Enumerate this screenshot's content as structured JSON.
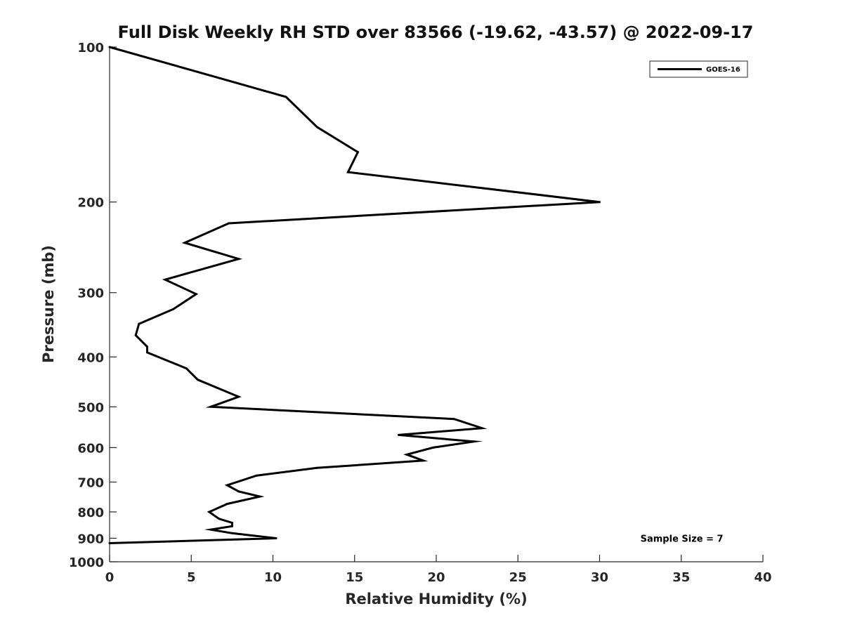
{
  "chart_data": {
    "type": "line",
    "title": "Full Disk Weekly RH STD over 83566 (-19.62, -43.57) @ 2022-09-17",
    "xlabel": "Relative Humidity (%)",
    "ylabel": "Pressure (mb)",
    "xlim": [
      0,
      40
    ],
    "ylim": [
      100,
      1000
    ],
    "y_scale": "log",
    "y_inverted": true,
    "grid": false,
    "legend_position": "top-right",
    "x_ticks": [
      0,
      5,
      10,
      15,
      20,
      25,
      30,
      35,
      40
    ],
    "x_tick_labels": [
      "0",
      "5",
      "10",
      "15",
      "20",
      "25",
      "30",
      "35",
      "40"
    ],
    "y_ticks": [
      100,
      200,
      300,
      400,
      500,
      600,
      700,
      800,
      900,
      1000
    ],
    "y_tick_labels": [
      "100",
      "200",
      "300",
      "400",
      "500",
      "600",
      "700",
      "800",
      "900",
      "1000"
    ],
    "series": [
      {
        "name": "GOES-16",
        "color": "#000000",
        "x": [
          0,
          10.8,
          12.7,
          15.2,
          14.6,
          30.0,
          7.3,
          4.6,
          7.9,
          3.4,
          5.3,
          3.9,
          1.8,
          1.6,
          2.3,
          2.3,
          4.7,
          5.4,
          7.9,
          6.2,
          21.1,
          22.8,
          17.7,
          22.3,
          19.8,
          18.2,
          19.2,
          12.7,
          9.0,
          7.2,
          7.9,
          9.2,
          7.2,
          6.1,
          6.7,
          7.5,
          7.5,
          6.2,
          7.5,
          10.2,
          0
        ],
        "y": [
          100,
          125,
          143,
          160,
          175,
          200,
          220,
          240,
          258,
          283,
          302,
          323,
          345,
          363,
          382,
          392,
          421,
          443,
          478,
          500,
          528,
          550,
          567,
          584,
          600,
          619,
          636,
          657,
          680,
          710,
          730,
          747,
          772,
          800,
          825,
          840,
          853,
          866,
          880,
          900,
          920
        ]
      }
    ],
    "annotations": [
      {
        "text": "Sample Size = 7",
        "x": 32.5,
        "y": 900
      }
    ]
  }
}
